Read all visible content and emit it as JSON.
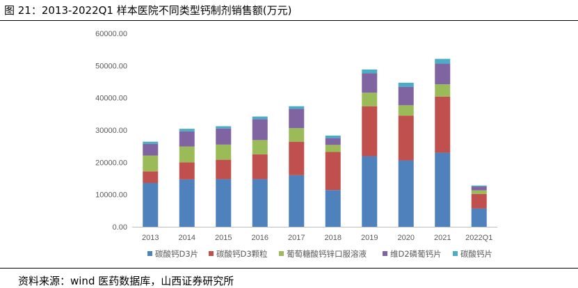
{
  "title": "图 21：2013-2022Q1 样本医院不同类型钙制剂销售额(万元)",
  "source": "资料来源：wind 医药数据库，山西证券研究所",
  "chart_data": {
    "type": "bar",
    "stacked": true,
    "title": "",
    "xlabel": "",
    "ylabel": "",
    "categories": [
      "2013",
      "2014",
      "2015",
      "2016",
      "2017",
      "2018",
      "2019",
      "2020",
      "2021",
      "2022Q1"
    ],
    "yticks": [
      "0.00",
      "10000.00",
      "20000.00",
      "30000.00",
      "40000.00",
      "50000.00",
      "60000.00"
    ],
    "ylim": [
      0,
      60000
    ],
    "grid": false,
    "legend_position": "bottom",
    "series": [
      {
        "name": "碳酸钙D3片",
        "color": "#4f81bd",
        "values": [
          13600,
          14700,
          14800,
          14800,
          16000,
          11400,
          21900,
          20600,
          23000,
          5700
        ]
      },
      {
        "name": "碳酸钙D3颗粒",
        "color": "#c0504d",
        "values": [
          3600,
          5300,
          6000,
          7700,
          10400,
          11800,
          15500,
          13900,
          17400,
          4500
        ]
      },
      {
        "name": "葡萄糖酸钙锌口服溶液",
        "color": "#9bbb59",
        "values": [
          4900,
          4900,
          4700,
          4400,
          4200,
          2200,
          4200,
          3200,
          3800,
          1100
        ]
      },
      {
        "name": "维D2磷葡钙片",
        "color": "#8064a2",
        "values": [
          3600,
          4700,
          5000,
          6500,
          6000,
          2100,
          6000,
          5700,
          6400,
          1200
        ]
      },
      {
        "name": "碳酸钙片",
        "color": "#4bacc6",
        "values": [
          700,
          800,
          700,
          800,
          800,
          800,
          1200,
          1300,
          1500,
          300
        ]
      }
    ]
  }
}
